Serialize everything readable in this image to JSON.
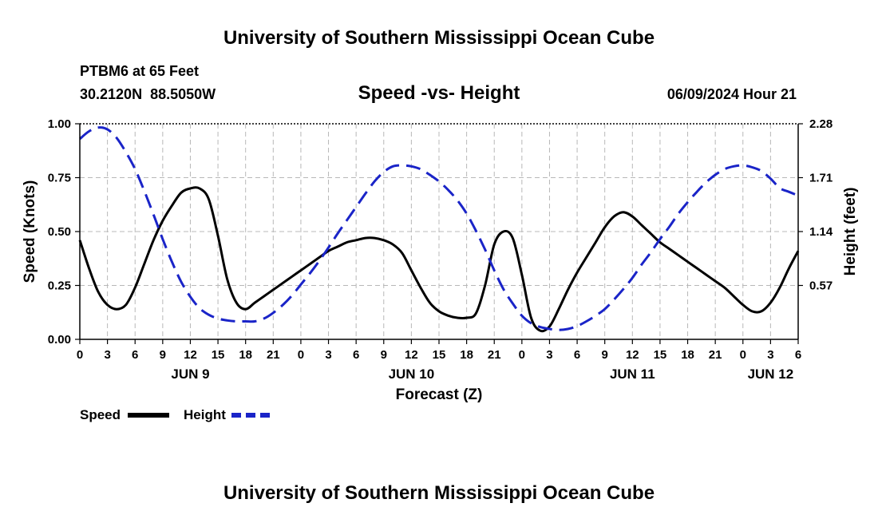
{
  "page": {
    "top_title": "University of Southern Mississippi Ocean Cube",
    "bottom_title": "University of Southern Mississippi Ocean Cube",
    "station": "PTBM6 at 65 Feet",
    "coords": "30.2120N  88.5050W",
    "subtitle": "Speed -vs- Height",
    "datetime": "06/09/2024 Hour 21"
  },
  "chart_data": {
    "type": "line",
    "title": "Speed -vs- Height",
    "xlabel": "Forecast (Z)",
    "ylabel": "Speed (Knots)",
    "y2label": "Height (feet)",
    "xlim": [
      0,
      78
    ],
    "ylim": [
      0,
      1
    ],
    "y2lim": [
      0,
      2.28
    ],
    "x_ticks": [
      0,
      3,
      6,
      9,
      12,
      15,
      18,
      21,
      24,
      27,
      30,
      33,
      36,
      39,
      42,
      45,
      48,
      51,
      54,
      57,
      60,
      63,
      66,
      69,
      72,
      75,
      78
    ],
    "x_tick_labels": [
      "0",
      "3",
      "6",
      "9",
      "12",
      "15",
      "18",
      "21",
      "0",
      "3",
      "6",
      "9",
      "12",
      "15",
      "18",
      "21",
      "0",
      "3",
      "6",
      "9",
      "12",
      "15",
      "18",
      "21",
      "0",
      "3",
      "6"
    ],
    "day_labels": [
      {
        "x": 12,
        "label": "JUN 9"
      },
      {
        "x": 36,
        "label": "JUN 10"
      },
      {
        "x": 60,
        "label": "JUN 11"
      },
      {
        "x": 75,
        "label": "JUN 12"
      }
    ],
    "y_ticks": [
      0,
      0.25,
      0.5,
      0.75,
      1.0
    ],
    "y_tick_labels": [
      "0.00",
      "0.25",
      "0.50",
      "0.75",
      "1.00"
    ],
    "y2_ticks": [
      0.57,
      1.14,
      1.71,
      2.28
    ],
    "y2_tick_labels": [
      "0.57",
      "1.14",
      "1.71",
      "2.28"
    ],
    "grid": true,
    "legend": "bottom-left",
    "series": [
      {
        "name": "Speed",
        "axis": "left",
        "color": "#000000",
        "style": "solid",
        "x": [
          0,
          1,
          2,
          3,
          4,
          5,
          6,
          7,
          8,
          9,
          10,
          11,
          12,
          13,
          14,
          15,
          16,
          17,
          18,
          19,
          20,
          21,
          22,
          23,
          24,
          25,
          26,
          27,
          28,
          29,
          30,
          31,
          32,
          33,
          34,
          35,
          36,
          37,
          38,
          39,
          40,
          41,
          42,
          43,
          44,
          45,
          46,
          47,
          48,
          49,
          50,
          51,
          52,
          53,
          54,
          55,
          56,
          57,
          58,
          59,
          60,
          61,
          62,
          63,
          64,
          65,
          66,
          67,
          68,
          69,
          70,
          71,
          72,
          73,
          74,
          75,
          76,
          77,
          78
        ],
        "values": [
          0.46,
          0.33,
          0.22,
          0.16,
          0.14,
          0.16,
          0.24,
          0.35,
          0.46,
          0.55,
          0.62,
          0.68,
          0.7,
          0.7,
          0.65,
          0.48,
          0.28,
          0.17,
          0.14,
          0.17,
          0.2,
          0.23,
          0.26,
          0.29,
          0.32,
          0.35,
          0.38,
          0.41,
          0.43,
          0.45,
          0.46,
          0.47,
          0.47,
          0.46,
          0.44,
          0.4,
          0.32,
          0.24,
          0.17,
          0.13,
          0.11,
          0.1,
          0.1,
          0.12,
          0.25,
          0.44,
          0.5,
          0.47,
          0.3,
          0.1,
          0.04,
          0.06,
          0.14,
          0.23,
          0.31,
          0.38,
          0.45,
          0.52,
          0.57,
          0.59,
          0.57,
          0.53,
          0.49,
          0.45,
          0.42,
          0.39,
          0.36,
          0.33,
          0.3,
          0.27,
          0.24,
          0.2,
          0.16,
          0.13,
          0.13,
          0.17,
          0.24,
          0.33,
          0.41
        ]
      },
      {
        "name": "Height",
        "axis": "right",
        "color": "#1a24c8",
        "style": "dashed",
        "x": [
          0,
          1,
          2,
          3,
          4,
          5,
          6,
          7,
          8,
          9,
          10,
          11,
          12,
          13,
          14,
          15,
          16,
          17,
          18,
          19,
          20,
          21,
          22,
          23,
          24,
          25,
          26,
          27,
          28,
          29,
          30,
          31,
          32,
          33,
          34,
          35,
          36,
          37,
          38,
          39,
          40,
          41,
          42,
          43,
          44,
          45,
          46,
          47,
          48,
          49,
          50,
          51,
          52,
          53,
          54,
          55,
          56,
          57,
          58,
          59,
          60,
          61,
          62,
          63,
          64,
          65,
          66,
          67,
          68,
          69,
          70,
          71,
          72,
          73,
          74,
          75,
          76,
          77,
          78
        ],
        "values": [
          2.12,
          2.2,
          2.24,
          2.22,
          2.13,
          1.98,
          1.8,
          1.57,
          1.32,
          1.06,
          0.82,
          0.61,
          0.45,
          0.33,
          0.26,
          0.22,
          0.2,
          0.19,
          0.19,
          0.19,
          0.22,
          0.28,
          0.36,
          0.46,
          0.58,
          0.7,
          0.83,
          0.97,
          1.12,
          1.26,
          1.4,
          1.54,
          1.67,
          1.77,
          1.83,
          1.84,
          1.83,
          1.8,
          1.74,
          1.67,
          1.58,
          1.47,
          1.33,
          1.15,
          0.95,
          0.73,
          0.53,
          0.38,
          0.25,
          0.17,
          0.13,
          0.11,
          0.1,
          0.11,
          0.14,
          0.19,
          0.25,
          0.32,
          0.42,
          0.53,
          0.65,
          0.79,
          0.92,
          1.06,
          1.19,
          1.33,
          1.45,
          1.56,
          1.66,
          1.74,
          1.8,
          1.83,
          1.84,
          1.82,
          1.78,
          1.7,
          1.6,
          1.56,
          1.52
        ]
      }
    ]
  }
}
